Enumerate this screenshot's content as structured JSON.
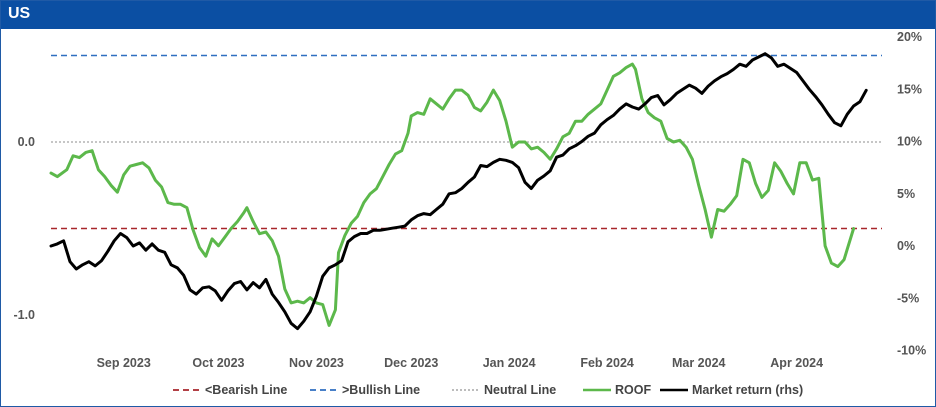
{
  "header": {
    "title": "US"
  },
  "colors": {
    "header_bg": "#0b4fa3",
    "bearish": "#a8262b",
    "bullish": "#2f6fc0",
    "neutral": "#b3b3b3",
    "roof": "#5cb84b",
    "market": "#000000"
  },
  "chart_data": {
    "type": "line",
    "title": "US",
    "x_tick_labels": [
      "Sep 2023",
      "Oct 2023",
      "Nov 2023",
      "Dec 2023",
      "Jan 2024",
      "Feb 2024",
      "Mar 2024",
      "Apr 2024"
    ],
    "x_tick_days": [
      23,
      53,
      84,
      114,
      145,
      176,
      205,
      236
    ],
    "x_range_days": [
      0,
      263
    ],
    "x_origin_date": "2023-08-09",
    "left_axis": {
      "ticks": [
        0.0,
        -1.0
      ],
      "tick_labels": [
        "0.0",
        "-1.0"
      ],
      "range": [
        -1.2,
        0.6
      ]
    },
    "right_axis": {
      "ticks": [
        20,
        15,
        10,
        5,
        0,
        -5,
        -10
      ],
      "tick_labels": [
        "20%",
        "15%",
        "10%",
        "5%",
        "0%",
        "-5%",
        "-10%"
      ],
      "range": [
        -10,
        20
      ]
    },
    "reference_lines": [
      {
        "name": "<Bearish Line",
        "value": -0.5,
        "color": "#a8262b",
        "style": "dashed"
      },
      {
        "name": ">Bullish Line",
        "value": 0.5,
        "color": "#2f6fc0",
        "style": "dashed"
      },
      {
        "name": "Neutral Line",
        "value": 0.0,
        "color": "#b3b3b3",
        "style": "dotted"
      }
    ],
    "series": [
      {
        "name": "ROOF",
        "axis": "left",
        "color": "#5cb84b",
        "points": [
          [
            0,
            -0.18
          ],
          [
            2,
            -0.2
          ],
          [
            5,
            -0.16
          ],
          [
            7,
            -0.08
          ],
          [
            9,
            -0.09
          ],
          [
            11,
            -0.06
          ],
          [
            13,
            -0.05
          ],
          [
            15,
            -0.16
          ],
          [
            17,
            -0.2
          ],
          [
            19,
            -0.25
          ],
          [
            21,
            -0.29
          ],
          [
            23,
            -0.19
          ],
          [
            25,
            -0.14
          ],
          [
            27,
            -0.13
          ],
          [
            29,
            -0.12
          ],
          [
            31,
            -0.15
          ],
          [
            33,
            -0.22
          ],
          [
            35,
            -0.26
          ],
          [
            37,
            -0.35
          ],
          [
            39,
            -0.36
          ],
          [
            41,
            -0.36
          ],
          [
            43,
            -0.38
          ],
          [
            45,
            -0.51
          ],
          [
            47,
            -0.61
          ],
          [
            49,
            -0.66
          ],
          [
            51,
            -0.56
          ],
          [
            53,
            -0.6
          ],
          [
            55,
            -0.55
          ],
          [
            57,
            -0.5
          ],
          [
            59,
            -0.46
          ],
          [
            61,
            -0.41
          ],
          [
            62,
            -0.38
          ],
          [
            64,
            -0.46
          ],
          [
            66,
            -0.53
          ],
          [
            68,
            -0.52
          ],
          [
            70,
            -0.57
          ],
          [
            72,
            -0.66
          ],
          [
            74,
            -0.85
          ],
          [
            76,
            -0.93
          ],
          [
            78,
            -0.92
          ],
          [
            80,
            -0.93
          ],
          [
            82,
            -0.9
          ],
          [
            84,
            -0.93
          ],
          [
            86,
            -0.94
          ],
          [
            88,
            -1.06
          ],
          [
            90,
            -0.97
          ],
          [
            91,
            -0.64
          ],
          [
            93,
            -0.54
          ],
          [
            95,
            -0.47
          ],
          [
            97,
            -0.43
          ],
          [
            99,
            -0.35
          ],
          [
            101,
            -0.3
          ],
          [
            103,
            -0.27
          ],
          [
            105,
            -0.2
          ],
          [
            107,
            -0.13
          ],
          [
            109,
            -0.07
          ],
          [
            111,
            -0.05
          ],
          [
            113,
            0.05
          ],
          [
            114,
            0.15
          ],
          [
            116,
            0.17
          ],
          [
            118,
            0.16
          ],
          [
            120,
            0.25
          ],
          [
            122,
            0.22
          ],
          [
            124,
            0.19
          ],
          [
            126,
            0.25
          ],
          [
            128,
            0.3
          ],
          [
            130,
            0.3
          ],
          [
            132,
            0.27
          ],
          [
            134,
            0.2
          ],
          [
            136,
            0.18
          ],
          [
            138,
            0.23
          ],
          [
            140,
            0.3
          ],
          [
            142,
            0.24
          ],
          [
            144,
            0.12
          ],
          [
            146,
            -0.03
          ],
          [
            148,
            0.0
          ],
          [
            150,
            0.0
          ],
          [
            152,
            -0.04
          ],
          [
            154,
            -0.03
          ],
          [
            156,
            -0.06
          ],
          [
            158,
            -0.1
          ],
          [
            160,
            -0.04
          ],
          [
            162,
            0.03
          ],
          [
            164,
            0.05
          ],
          [
            166,
            0.12
          ],
          [
            168,
            0.12
          ],
          [
            170,
            0.16
          ],
          [
            172,
            0.19
          ],
          [
            174,
            0.22
          ],
          [
            176,
            0.3
          ],
          [
            178,
            0.38
          ],
          [
            180,
            0.4
          ],
          [
            182,
            0.43
          ],
          [
            184,
            0.45
          ],
          [
            185,
            0.42
          ],
          [
            187,
            0.25
          ],
          [
            189,
            0.17
          ],
          [
            191,
            0.14
          ],
          [
            193,
            0.12
          ],
          [
            195,
            0.02
          ],
          [
            197,
            0.0
          ],
          [
            199,
            0.01
          ],
          [
            201,
            -0.03
          ],
          [
            203,
            -0.1
          ],
          [
            205,
            -0.25
          ],
          [
            207,
            -0.39
          ],
          [
            209,
            -0.55
          ],
          [
            211,
            -0.39
          ],
          [
            213,
            -0.4
          ],
          [
            215,
            -0.36
          ],
          [
            217,
            -0.31
          ],
          [
            219,
            -0.1
          ],
          [
            221,
            -0.12
          ],
          [
            223,
            -0.24
          ],
          [
            225,
            -0.32
          ],
          [
            227,
            -0.28
          ],
          [
            229,
            -0.12
          ],
          [
            231,
            -0.17
          ],
          [
            233,
            -0.24
          ],
          [
            235,
            -0.3
          ],
          [
            237,
            -0.12
          ],
          [
            239,
            -0.12
          ],
          [
            241,
            -0.22
          ],
          [
            243,
            -0.21
          ],
          [
            245,
            -0.6
          ],
          [
            247,
            -0.7
          ],
          [
            249,
            -0.72
          ],
          [
            251,
            -0.68
          ],
          [
            252,
            -0.62
          ],
          [
            254,
            -0.5
          ]
        ]
      },
      {
        "name": "Market return (rhs)",
        "axis": "right",
        "color": "#000000",
        "points": [
          [
            0,
            0.0
          ],
          [
            2,
            0.2
          ],
          [
            4,
            0.5
          ],
          [
            6,
            -1.5
          ],
          [
            8,
            -2.2
          ],
          [
            10,
            -1.8
          ],
          [
            12,
            -1.5
          ],
          [
            14,
            -1.9
          ],
          [
            16,
            -1.4
          ],
          [
            18,
            -0.5
          ],
          [
            20,
            0.5
          ],
          [
            22,
            1.2
          ],
          [
            24,
            0.8
          ],
          [
            26,
            0.0
          ],
          [
            28,
            0.3
          ],
          [
            30,
            -0.4
          ],
          [
            32,
            0.2
          ],
          [
            34,
            -0.4
          ],
          [
            36,
            -0.6
          ],
          [
            38,
            -1.8
          ],
          [
            40,
            -2.1
          ],
          [
            42,
            -2.8
          ],
          [
            44,
            -4.2
          ],
          [
            46,
            -4.6
          ],
          [
            48,
            -4.0
          ],
          [
            50,
            -3.9
          ],
          [
            52,
            -4.3
          ],
          [
            54,
            -5.2
          ],
          [
            56,
            -4.3
          ],
          [
            58,
            -3.6
          ],
          [
            60,
            -3.4
          ],
          [
            62,
            -4.2
          ],
          [
            64,
            -3.5
          ],
          [
            66,
            -4.0
          ],
          [
            68,
            -3.2
          ],
          [
            70,
            -4.6
          ],
          [
            72,
            -5.4
          ],
          [
            74,
            -6.3
          ],
          [
            76,
            -7.4
          ],
          [
            78,
            -7.9
          ],
          [
            80,
            -7.2
          ],
          [
            82,
            -6.3
          ],
          [
            84,
            -4.8
          ],
          [
            86,
            -2.9
          ],
          [
            88,
            -2.1
          ],
          [
            90,
            -1.8
          ],
          [
            92,
            -1.4
          ],
          [
            94,
            0.4
          ],
          [
            96,
            0.9
          ],
          [
            98,
            1.2
          ],
          [
            100,
            1.2
          ],
          [
            102,
            1.5
          ],
          [
            104,
            1.5
          ],
          [
            106,
            1.6
          ],
          [
            108,
            1.7
          ],
          [
            110,
            1.8
          ],
          [
            112,
            1.9
          ],
          [
            114,
            2.5
          ],
          [
            116,
            2.9
          ],
          [
            118,
            3.1
          ],
          [
            120,
            3.0
          ],
          [
            122,
            3.5
          ],
          [
            124,
            4.0
          ],
          [
            126,
            5.0
          ],
          [
            128,
            5.1
          ],
          [
            130,
            5.5
          ],
          [
            132,
            6.1
          ],
          [
            134,
            6.6
          ],
          [
            136,
            7.7
          ],
          [
            138,
            7.6
          ],
          [
            140,
            8.0
          ],
          [
            142,
            8.3
          ],
          [
            144,
            8.2
          ],
          [
            146,
            8.0
          ],
          [
            148,
            7.5
          ],
          [
            150,
            6.1
          ],
          [
            152,
            5.5
          ],
          [
            154,
            6.3
          ],
          [
            156,
            6.7
          ],
          [
            158,
            7.2
          ],
          [
            160,
            8.5
          ],
          [
            162,
            8.7
          ],
          [
            164,
            9.3
          ],
          [
            166,
            9.6
          ],
          [
            168,
            10.0
          ],
          [
            170,
            10.5
          ],
          [
            172,
            10.8
          ],
          [
            174,
            11.6
          ],
          [
            176,
            12.1
          ],
          [
            178,
            12.5
          ],
          [
            180,
            13.1
          ],
          [
            182,
            13.6
          ],
          [
            184,
            13.3
          ],
          [
            186,
            13.1
          ],
          [
            188,
            13.6
          ],
          [
            190,
            14.2
          ],
          [
            192,
            14.4
          ],
          [
            194,
            13.5
          ],
          [
            196,
            14.0
          ],
          [
            198,
            14.6
          ],
          [
            200,
            15.0
          ],
          [
            202,
            15.4
          ],
          [
            204,
            15.1
          ],
          [
            206,
            14.6
          ],
          [
            208,
            15.3
          ],
          [
            210,
            15.8
          ],
          [
            212,
            16.2
          ],
          [
            214,
            16.5
          ],
          [
            216,
            16.9
          ],
          [
            218,
            17.4
          ],
          [
            220,
            17.2
          ],
          [
            222,
            17.8
          ],
          [
            224,
            18.1
          ],
          [
            226,
            18.4
          ],
          [
            228,
            18.0
          ],
          [
            230,
            17.2
          ],
          [
            232,
            17.4
          ],
          [
            234,
            17.0
          ],
          [
            236,
            16.6
          ],
          [
            238,
            15.8
          ],
          [
            240,
            15.0
          ],
          [
            242,
            14.3
          ],
          [
            244,
            13.5
          ],
          [
            246,
            12.6
          ],
          [
            248,
            11.8
          ],
          [
            250,
            11.5
          ],
          [
            252,
            12.6
          ],
          [
            254,
            13.4
          ],
          [
            256,
            13.8
          ],
          [
            258,
            14.9
          ]
        ]
      }
    ],
    "legend": {
      "placement": "bottom",
      "entries": [
        {
          "label": "<Bearish Line",
          "color": "#a8262b",
          "style": "dashed"
        },
        {
          "label": ">Bullish Line",
          "color": "#2f6fc0",
          "style": "dashed"
        },
        {
          "label": "Neutral Line",
          "color": "#b3b3b3",
          "style": "dotted"
        },
        {
          "label": "ROOF",
          "color": "#5cb84b",
          "style": "solid"
        },
        {
          "label": "Market return (rhs)",
          "color": "#000000",
          "style": "solid"
        }
      ]
    }
  }
}
